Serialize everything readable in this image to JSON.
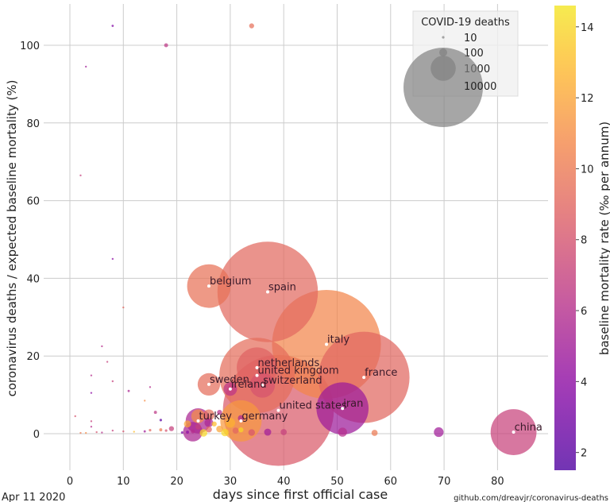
{
  "chart_data": {
    "type": "scatter",
    "title": "",
    "xlabel": "days since first official case",
    "ylabel": "coronavirus deaths / expected baseline mortality (%)",
    "xlim": [
      -3,
      90
    ],
    "ylim": [
      -9,
      110
    ],
    "xticks": [
      0,
      10,
      20,
      30,
      40,
      50,
      60,
      70,
      80
    ],
    "yticks": [
      0,
      20,
      40,
      60,
      80,
      100
    ],
    "grid": true,
    "date_label": "Apr 11 2020",
    "source_label": "github.com/dreavjr/coronavirus-deaths",
    "size_legend": {
      "title": "COVID-19 deaths",
      "entries": [
        10,
        100,
        1000,
        10000
      ],
      "placement": "top-right"
    },
    "colorbar": {
      "label": "baseline mortality rate (‰ per annum)",
      "range": [
        1.5,
        14.6
      ],
      "ticks": [
        2,
        4,
        6,
        8,
        10,
        12,
        14
      ],
      "colormap": "plasma"
    },
    "labeled_points": [
      {
        "label": "belgium",
        "x": 26,
        "y": 38,
        "deaths": 3000,
        "color_value": 9.6
      },
      {
        "label": "spain",
        "x": 37,
        "y": 36.5,
        "deaths": 16000,
        "color_value": 9.1
      },
      {
        "label": "italy",
        "x": 48,
        "y": 23,
        "deaths": 18800,
        "color_value": 10.6
      },
      {
        "label": "netherlands",
        "x": 35,
        "y": 17,
        "deaths": 2600,
        "color_value": 8.8
      },
      {
        "label": "united kingdom",
        "x": 35,
        "y": 15,
        "deaths": 9000,
        "color_value": 9.4
      },
      {
        "label": "france",
        "x": 55,
        "y": 14.5,
        "deaths": 13200,
        "color_value": 9.0
      },
      {
        "label": "sweden",
        "x": 26,
        "y": 12.7,
        "deaths": 800,
        "color_value": 9.4
      },
      {
        "label": "switzerland",
        "x": 36,
        "y": 12.5,
        "deaths": 1000,
        "color_value": 8.0
      },
      {
        "label": "ireland",
        "x": 30,
        "y": 11.5,
        "deaths": 290,
        "color_value": 6.4
      },
      {
        "label": "united states",
        "x": 39,
        "y": 6,
        "deaths": 19500,
        "color_value": 8.3
      },
      {
        "label": "iran",
        "x": 51,
        "y": 6.5,
        "deaths": 4300,
        "color_value": 4.8
      },
      {
        "label": "turkey",
        "x": 24,
        "y": 3.3,
        "deaths": 1000,
        "color_value": 5.5
      },
      {
        "label": "germany",
        "x": 32,
        "y": 3.3,
        "deaths": 2700,
        "color_value": 11.5
      },
      {
        "label": "china",
        "x": 83,
        "y": 0.4,
        "deaths": 3340,
        "color_value": 7.1
      }
    ],
    "unlabeled_points": [
      {
        "x": 8,
        "y": 105,
        "deaths": 8,
        "color_value": 3.5
      },
      {
        "x": 18,
        "y": 100,
        "deaths": 25,
        "color_value": 6.5
      },
      {
        "x": 34,
        "y": 105,
        "deaths": 40,
        "color_value": 9.5
      },
      {
        "x": 3,
        "y": 94.5,
        "deaths": 3,
        "color_value": 5
      },
      {
        "x": 2,
        "y": 66.5,
        "deaths": 3,
        "color_value": 7
      },
      {
        "x": 8,
        "y": 45,
        "deaths": 3,
        "color_value": 4
      },
      {
        "x": 10,
        "y": 32.5,
        "deaths": 3,
        "color_value": 9
      },
      {
        "x": 6,
        "y": 22.5,
        "deaths": 2,
        "color_value": 6
      },
      {
        "x": 7,
        "y": 18.5,
        "deaths": 2,
        "color_value": 7
      },
      {
        "x": 4,
        "y": 15,
        "deaths": 3,
        "color_value": 6
      },
      {
        "x": 8,
        "y": 13.5,
        "deaths": 6,
        "color_value": 7
      },
      {
        "x": 4,
        "y": 10.5,
        "deaths": 2,
        "color_value": 4
      },
      {
        "x": 15,
        "y": 12,
        "deaths": 3,
        "color_value": 6
      },
      {
        "x": 14,
        "y": 8.5,
        "deaths": 2,
        "color_value": 11
      },
      {
        "x": 11,
        "y": 11,
        "deaths": 8,
        "color_value": 5.5
      },
      {
        "x": 1,
        "y": 4.5,
        "deaths": 2,
        "color_value": 8
      },
      {
        "x": 4,
        "y": 3.2,
        "deaths": 2,
        "color_value": 7
      },
      {
        "x": 4,
        "y": 1.8,
        "deaths": 2,
        "color_value": 6
      },
      {
        "x": 16,
        "y": 5.5,
        "deaths": 15,
        "color_value": 6.5
      },
      {
        "x": 17,
        "y": 3.5,
        "deaths": 10,
        "color_value": 2
      },
      {
        "x": 2,
        "y": 0.2,
        "deaths": 2,
        "color_value": 10
      },
      {
        "x": 3,
        "y": 0.2,
        "deaths": 2,
        "color_value": 11
      },
      {
        "x": 5,
        "y": 0.4,
        "deaths": 3,
        "color_value": 8
      },
      {
        "x": 6,
        "y": 0.3,
        "deaths": 2,
        "color_value": 6
      },
      {
        "x": 8,
        "y": 0.8,
        "deaths": 5,
        "color_value": 7
      },
      {
        "x": 10,
        "y": 0.6,
        "deaths": 6,
        "color_value": 8
      },
      {
        "x": 12,
        "y": 0.5,
        "deaths": 3,
        "color_value": 13
      },
      {
        "x": 14,
        "y": 0.6,
        "deaths": 8,
        "color_value": 5
      },
      {
        "x": 15,
        "y": 0.9,
        "deaths": 10,
        "color_value": 9
      },
      {
        "x": 17,
        "y": 1.0,
        "deaths": 15,
        "color_value": 10
      },
      {
        "x": 18,
        "y": 0.8,
        "deaths": 10,
        "color_value": 8
      },
      {
        "x": 19,
        "y": 1.3,
        "deaths": 40,
        "color_value": 7
      },
      {
        "x": 21,
        "y": 0.3,
        "deaths": 10,
        "color_value": 3
      },
      {
        "x": 22,
        "y": 0.4,
        "deaths": 15,
        "color_value": 4
      },
      {
        "x": 23,
        "y": 0.6,
        "deaths": 25,
        "color_value": 6
      },
      {
        "x": 24,
        "y": 1.8,
        "deaths": 50,
        "color_value": 7
      },
      {
        "x": 25,
        "y": 0.2,
        "deaths": 90,
        "color_value": 14
      },
      {
        "x": 26,
        "y": 1.1,
        "deaths": 60,
        "color_value": 9
      },
      {
        "x": 27,
        "y": 2.5,
        "deaths": 40,
        "color_value": 13
      },
      {
        "x": 28,
        "y": 5.5,
        "deaths": 40,
        "color_value": 6
      },
      {
        "x": 22,
        "y": 2.5,
        "deaths": 80,
        "color_value": 12
      },
      {
        "x": 23,
        "y": 0.5,
        "deaths": 600,
        "color_value": 5.5
      },
      {
        "x": 24,
        "y": 4.5,
        "deaths": 300,
        "color_value": 11
      },
      {
        "x": 26,
        "y": 4.8,
        "deaths": 200,
        "color_value": 9.5
      },
      {
        "x": 26,
        "y": 2.8,
        "deaths": 120,
        "color_value": 5.5
      },
      {
        "x": 28,
        "y": 1.2,
        "deaths": 70,
        "color_value": 12
      },
      {
        "x": 29,
        "y": 0.3,
        "deaths": 90,
        "color_value": 14
      },
      {
        "x": 30,
        "y": 2.8,
        "deaths": 150,
        "color_value": 12.5
      },
      {
        "x": 31,
        "y": 0.8,
        "deaths": 60,
        "color_value": 9
      },
      {
        "x": 32,
        "y": 4.0,
        "deaths": 60,
        "color_value": 5.5
      },
      {
        "x": 32,
        "y": 1.0,
        "deaths": 40,
        "color_value": 14
      },
      {
        "x": 34,
        "y": 0.3,
        "deaths": 70,
        "color_value": 8
      },
      {
        "x": 37,
        "y": 0.4,
        "deaths": 80,
        "color_value": 5
      },
      {
        "x": 40,
        "y": 0.4,
        "deaths": 60,
        "color_value": 7
      },
      {
        "x": 51,
        "y": 0.4,
        "deaths": 130,
        "color_value": 6
      },
      {
        "x": 57,
        "y": 0.2,
        "deaths": 60,
        "color_value": 10
      },
      {
        "x": 69,
        "y": 0.4,
        "deaths": 150,
        "color_value": 5
      }
    ]
  }
}
